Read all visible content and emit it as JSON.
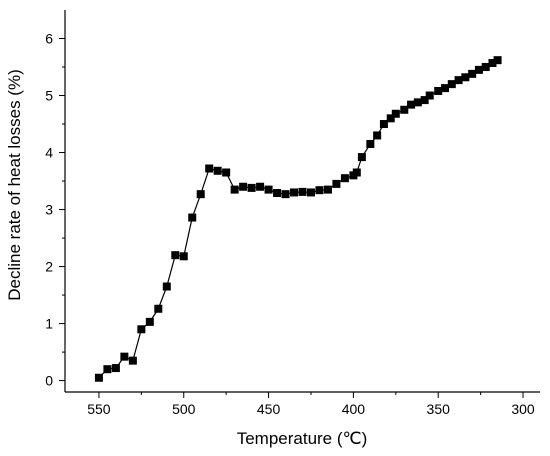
{
  "chart_data": {
    "type": "line",
    "title": "",
    "xlabel": "Temperature (℃)",
    "ylabel": "Decline rate of heat losses (%)",
    "xlim": [
      570,
      290
    ],
    "ylim": [
      -0.2,
      6.5
    ],
    "x_reversed": true,
    "xticks": [
      550,
      500,
      450,
      400,
      350,
      300
    ],
    "yticks": [
      0,
      1,
      2,
      3,
      4,
      5,
      6
    ],
    "grid": false,
    "legend": "none",
    "marker": "square",
    "line_style": "solid, dotted between 430 and 400",
    "series": [
      {
        "x": [
          550,
          545,
          540,
          535,
          530,
          525,
          520,
          515,
          510,
          505,
          500,
          495,
          490,
          485,
          480,
          475,
          470,
          465,
          460,
          455,
          450,
          445,
          440,
          435,
          430,
          425,
          420,
          415,
          410,
          405,
          400,
          398,
          395,
          390,
          386,
          382,
          378,
          375,
          370,
          366,
          362,
          358,
          355,
          350,
          346,
          342,
          338,
          334,
          330,
          326,
          322,
          318,
          315
        ],
        "y": [
          0.05,
          0.2,
          0.22,
          0.42,
          0.35,
          0.9,
          1.03,
          1.26,
          1.65,
          2.2,
          2.18,
          2.86,
          3.27,
          3.72,
          3.68,
          3.65,
          3.35,
          3.4,
          3.38,
          3.4,
          3.35,
          3.29,
          3.27,
          3.3,
          3.31,
          3.3,
          3.34,
          3.35,
          3.45,
          3.55,
          3.6,
          3.65,
          3.92,
          4.15,
          4.3,
          4.5,
          4.6,
          4.68,
          4.75,
          4.84,
          4.88,
          4.92,
          5.0,
          5.08,
          5.13,
          5.2,
          5.27,
          5.32,
          5.38,
          5.45,
          5.5,
          5.57,
          5.62
        ]
      }
    ]
  }
}
